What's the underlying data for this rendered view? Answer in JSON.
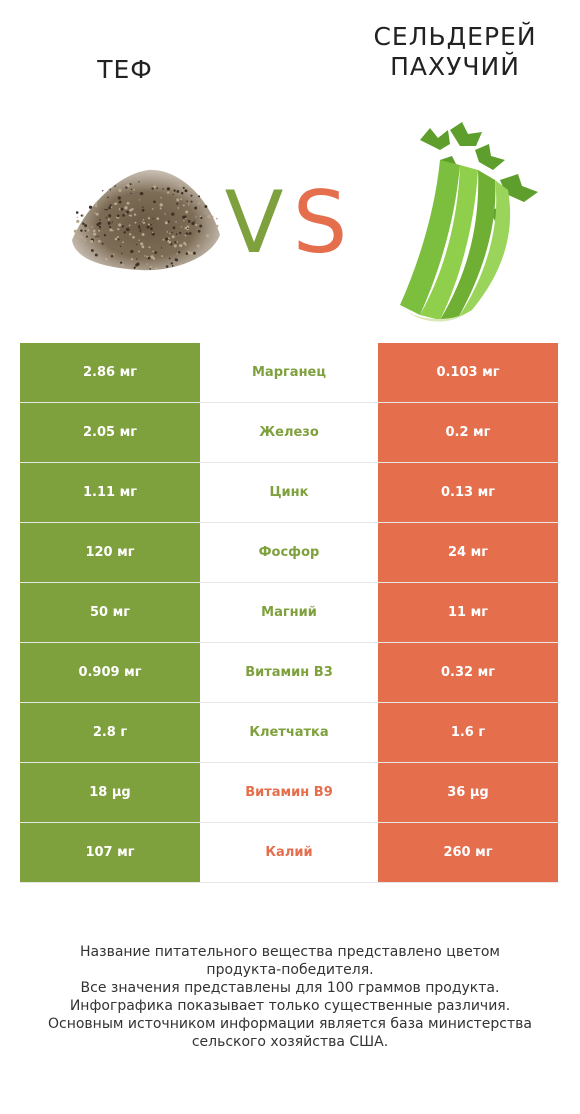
{
  "header": {
    "left_title": "ТЕФ",
    "right_title_line1": "СЕЛЬДЕРЕЙ",
    "right_title_line2": "ПАХУЧИЙ",
    "vs_v": "V",
    "vs_s": "S"
  },
  "colors": {
    "left": "#7ea03d",
    "right": "#e56e4c"
  },
  "rows": [
    {
      "left": "2.86 мг",
      "nutrient": "Марганец",
      "right": "0.103 мг",
      "winner": "left"
    },
    {
      "left": "2.05 мг",
      "nutrient": "Железо",
      "right": "0.2 мг",
      "winner": "left"
    },
    {
      "left": "1.11 мг",
      "nutrient": "Цинк",
      "right": "0.13 мг",
      "winner": "left"
    },
    {
      "left": "120 мг",
      "nutrient": "Фосфор",
      "right": "24 мг",
      "winner": "left"
    },
    {
      "left": "50 мг",
      "nutrient": "Магний",
      "right": "11 мг",
      "winner": "left"
    },
    {
      "left": "0.909 мг",
      "nutrient": "Витамин B3",
      "right": "0.32 мг",
      "winner": "left"
    },
    {
      "left": "2.8 г",
      "nutrient": "Клетчатка",
      "right": "1.6 г",
      "winner": "left"
    },
    {
      "left": "18 µg",
      "nutrient": "Витамин B9",
      "right": "36 µg",
      "winner": "right"
    },
    {
      "left": "107 мг",
      "nutrient": "Калий",
      "right": "260 мг",
      "winner": "right"
    }
  ],
  "notes": [
    "Название питательного вещества представлено цветом",
    "продукта-победителя.",
    "Все значения представлены для 100 граммов продукта.",
    "Инфографика показывает только существенные различия.",
    "Основным источником информации является база министерства",
    "сельского хозяйства США."
  ]
}
